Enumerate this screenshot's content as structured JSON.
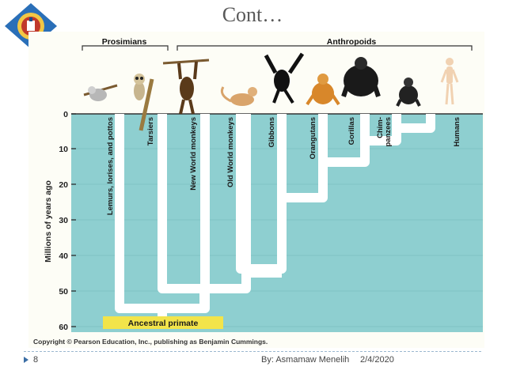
{
  "slide": {
    "title": "Cont…",
    "page_number": "8",
    "author": "By: Asmamaw Menelih",
    "date": "2/4/2020"
  },
  "figure": {
    "groups": {
      "prosimians": "Prosimians",
      "anthropoids": "Anthropoids"
    },
    "axis_label": "Millions of years ago",
    "ticks": [
      "0",
      "10",
      "20",
      "30",
      "40",
      "50",
      "60"
    ],
    "taxa": [
      "Lemurs, lorises, and pottos",
      "Tarsiers",
      "New World monkeys",
      "Old World monkeys",
      "Gibbons",
      "Orangutans",
      "Gorillas",
      "Chim-",
      "panzees",
      "Humans"
    ],
    "root_label": "Ancestral primate",
    "copyright": "Copyright © Pearson Education, Inc., publishing as Benjamin Cummings."
  },
  "colors": {
    "background": "#8ecfd0",
    "branch": "#ffffff",
    "root_box": "#f2e44a",
    "accent": "#3b6ea5"
  },
  "icons": [
    "emblem-logo",
    "lemur-icon",
    "tarsier-icon",
    "spider-monkey-icon",
    "old-world-monkey-icon",
    "gibbon-icon",
    "orangutan-icon",
    "gorilla-icon",
    "chimpanzee-icon",
    "human-icon"
  ]
}
